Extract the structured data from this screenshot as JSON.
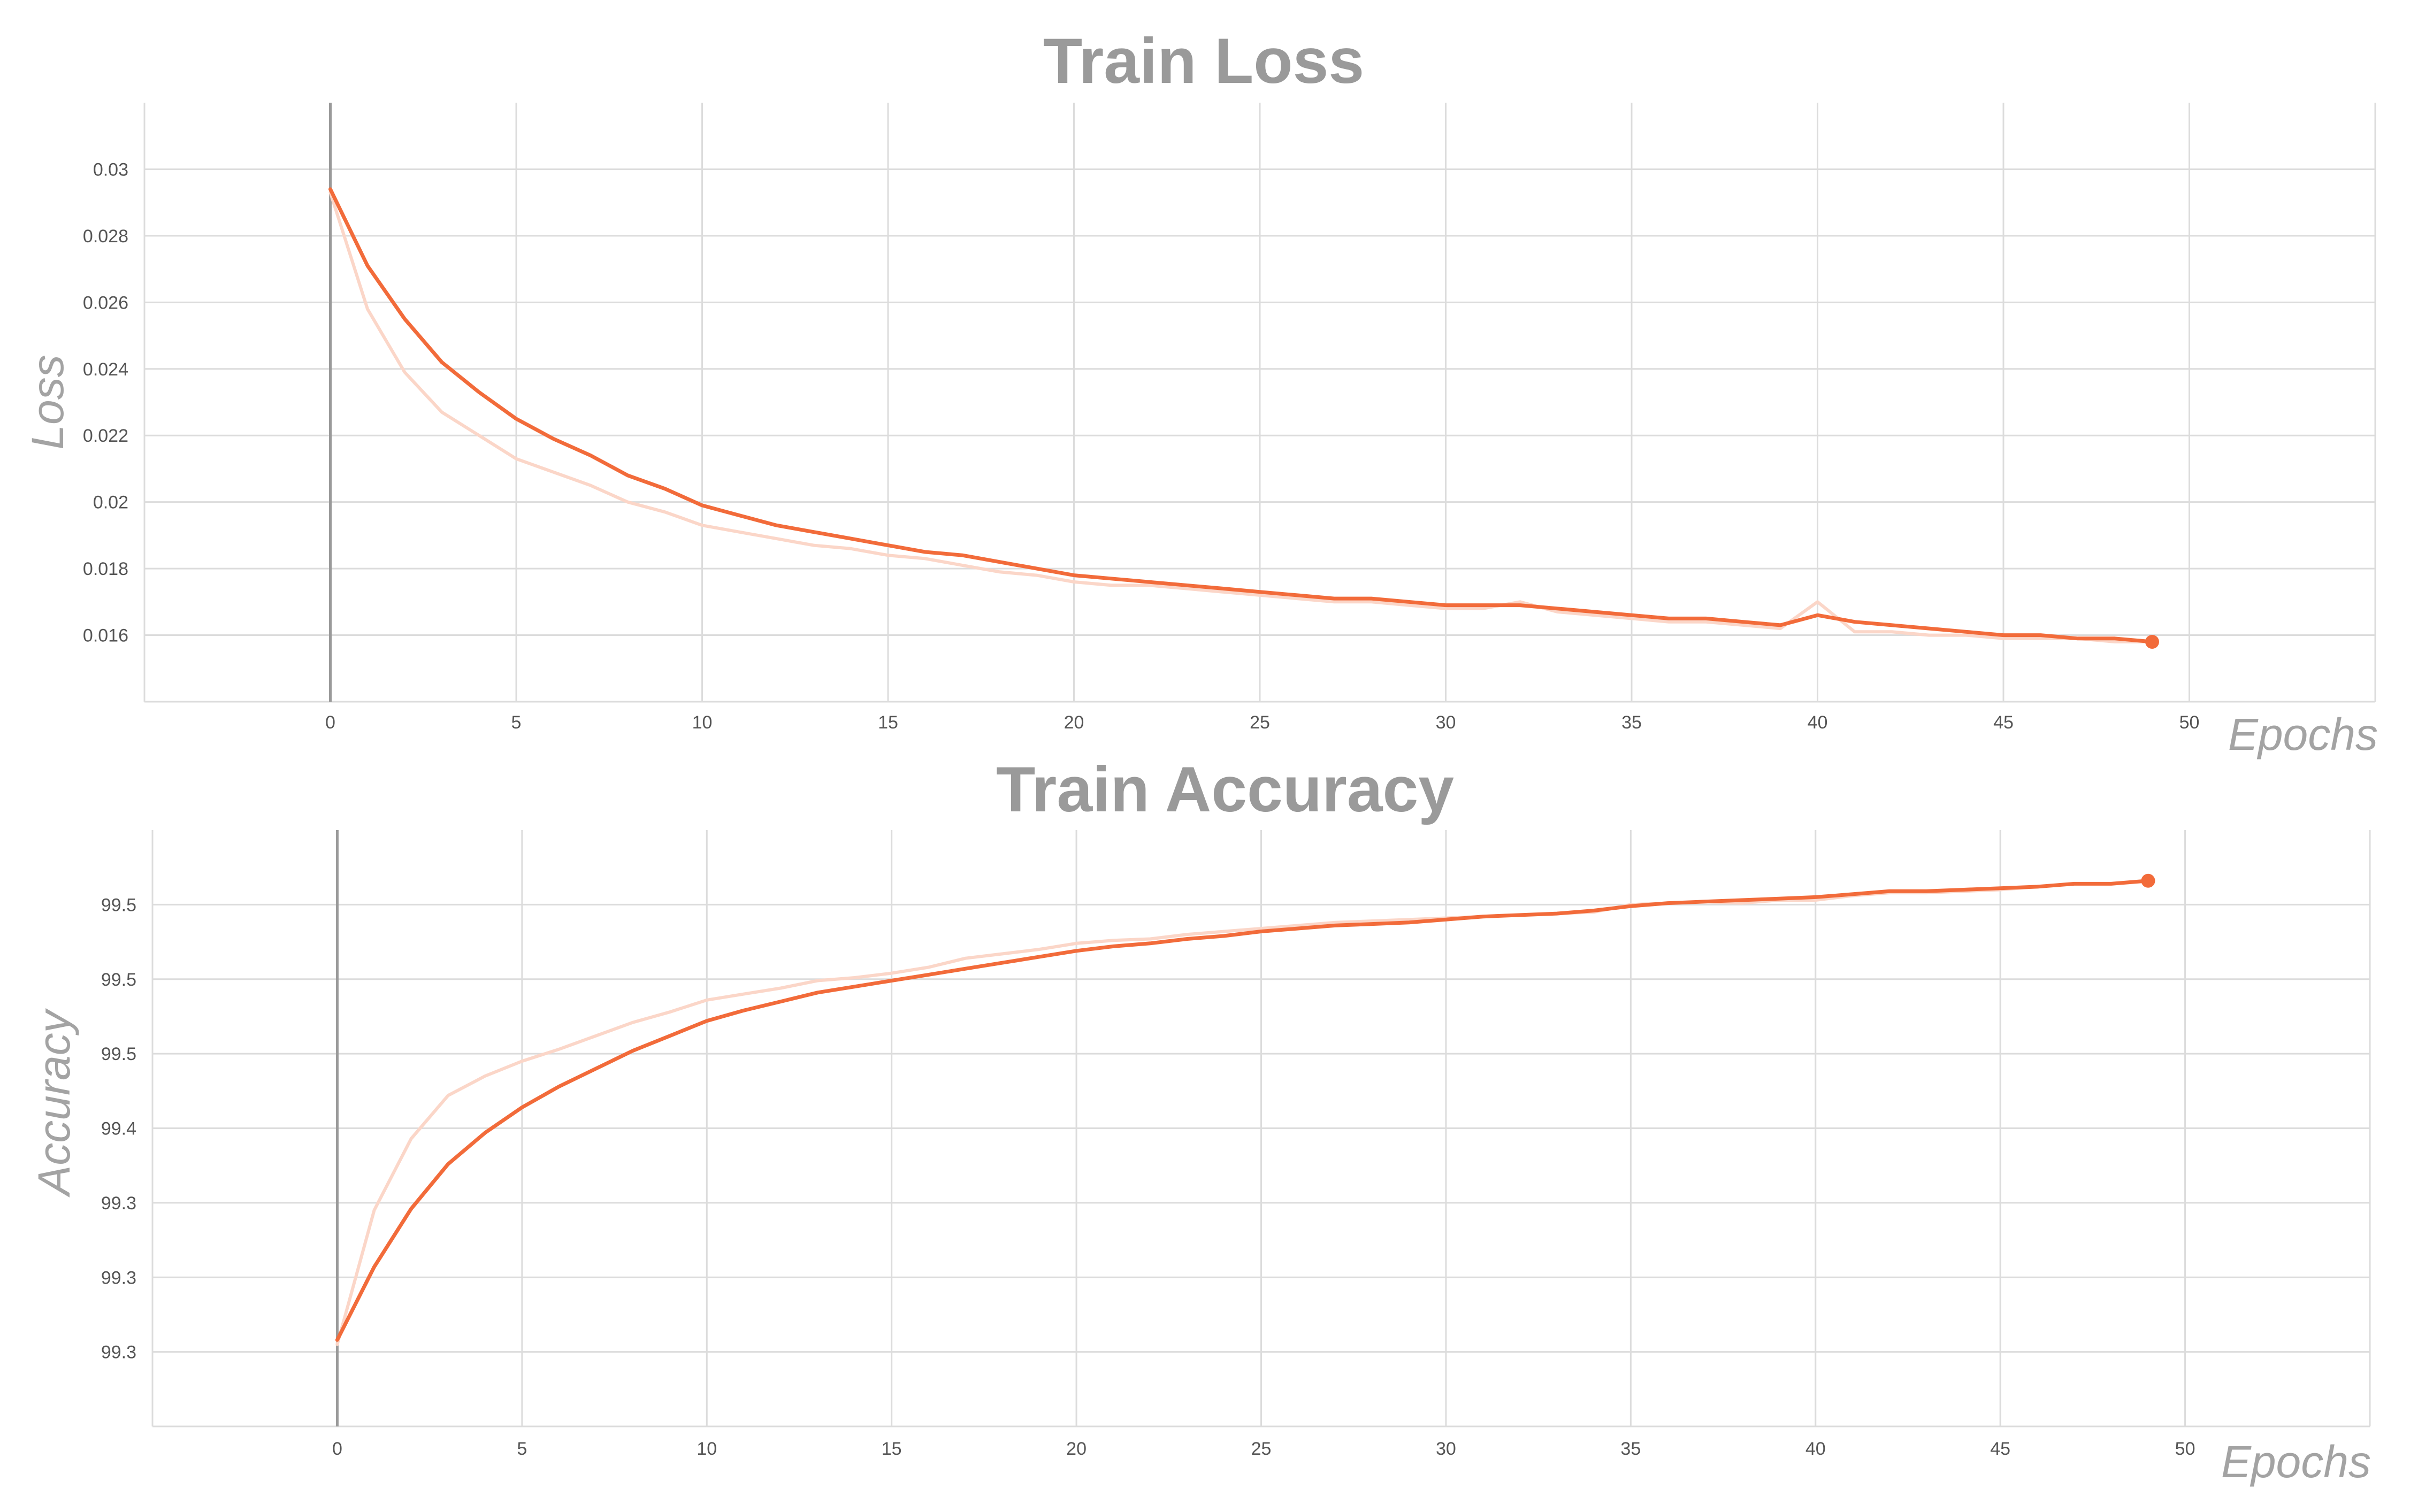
{
  "colors": {
    "smoothed": "#f26b3a",
    "raw": "#fbd6c8",
    "grid": "#dcdcdc",
    "title": "#9a9a9a"
  },
  "chart_data": [
    {
      "type": "line",
      "title": "Train Loss",
      "xlabel": "Epochs",
      "ylabel": "Loss",
      "xlim": [
        -5,
        55
      ],
      "ylim": [
        0.014,
        0.032
      ],
      "x_ticks": [
        0,
        5,
        10,
        15,
        20,
        25,
        30,
        35,
        40,
        45,
        50
      ],
      "y_ticks": [
        0.016,
        0.018,
        0.02,
        0.022,
        0.024,
        0.026,
        0.028,
        0.03
      ],
      "y_tick_labels": [
        "0.016",
        "0.018",
        "0.02",
        "0.022",
        "0.024",
        "0.026",
        "0.028",
        "0.03"
      ],
      "grid": true,
      "series": [
        {
          "style": "raw",
          "x": [
            0,
            1,
            2,
            3,
            4,
            5,
            6,
            7,
            8,
            9,
            10,
            11,
            12,
            13,
            14,
            15,
            16,
            17,
            18,
            19,
            20,
            21,
            22,
            23,
            24,
            25,
            26,
            27,
            28,
            29,
            30,
            31,
            32,
            33,
            34,
            35,
            36,
            37,
            38,
            39,
            40,
            41,
            42,
            43,
            44,
            45,
            46,
            47,
            48,
            49
          ],
          "y": [
            0.0293,
            0.0258,
            0.0239,
            0.0227,
            0.022,
            0.0213,
            0.0209,
            0.0205,
            0.02,
            0.0197,
            0.0193,
            0.0191,
            0.0189,
            0.0187,
            0.0186,
            0.0184,
            0.0183,
            0.0181,
            0.0179,
            0.0178,
            0.0176,
            0.0175,
            0.0175,
            0.0174,
            0.0173,
            0.0172,
            0.0171,
            0.017,
            0.017,
            0.0169,
            0.0168,
            0.0168,
            0.017,
            0.0167,
            0.0166,
            0.0165,
            0.0164,
            0.0164,
            0.0163,
            0.0162,
            0.017,
            0.0161,
            0.0161,
            0.016,
            0.016,
            0.0159,
            0.0159,
            0.0159,
            0.0158,
            0.0158
          ]
        },
        {
          "style": "smoothed",
          "x": [
            0,
            1,
            2,
            3,
            4,
            5,
            6,
            7,
            8,
            9,
            10,
            11,
            12,
            13,
            14,
            15,
            16,
            17,
            18,
            19,
            20,
            21,
            22,
            23,
            24,
            25,
            26,
            27,
            28,
            29,
            30,
            31,
            32,
            33,
            34,
            35,
            36,
            37,
            38,
            39,
            40,
            41,
            42,
            43,
            44,
            45,
            46,
            47,
            48,
            49
          ],
          "y": [
            0.0294,
            0.0271,
            0.0255,
            0.0242,
            0.0233,
            0.0225,
            0.0219,
            0.0214,
            0.0208,
            0.0204,
            0.0199,
            0.0196,
            0.0193,
            0.0191,
            0.0189,
            0.0187,
            0.0185,
            0.0184,
            0.0182,
            0.018,
            0.0178,
            0.0177,
            0.0176,
            0.0175,
            0.0174,
            0.0173,
            0.0172,
            0.0171,
            0.0171,
            0.017,
            0.0169,
            0.0169,
            0.0169,
            0.0168,
            0.0167,
            0.0166,
            0.0165,
            0.0165,
            0.0164,
            0.0163,
            0.0166,
            0.0164,
            0.0163,
            0.0162,
            0.0161,
            0.016,
            0.016,
            0.0159,
            0.0159,
            0.0158
          ]
        }
      ]
    },
    {
      "type": "line",
      "title": "Train Accuracy",
      "xlabel": "Epochs",
      "ylabel": "Accuracy",
      "xlim": [
        -5,
        55
      ],
      "ylim": [
        99.2,
        99.6
      ],
      "x_ticks": [
        0,
        5,
        10,
        15,
        20,
        25,
        30,
        35,
        40,
        45,
        50
      ],
      "y_ticks": [
        99.25,
        99.3,
        99.35,
        99.4,
        99.45,
        99.5,
        99.55
      ],
      "y_tick_labels": [
        "99.3",
        "99.3",
        "99.3",
        "99.4",
        "99.5",
        "99.5",
        "99.5"
      ],
      "grid": true,
      "series": [
        {
          "style": "raw",
          "x": [
            0,
            1,
            2,
            3,
            4,
            5,
            6,
            7,
            8,
            9,
            10,
            11,
            12,
            13,
            14,
            15,
            16,
            17,
            18,
            19,
            20,
            21,
            22,
            23,
            24,
            25,
            26,
            27,
            28,
            29,
            30,
            31,
            32,
            33,
            34,
            35,
            36,
            37,
            38,
            39,
            40,
            41,
            42,
            43,
            44,
            45,
            46,
            47,
            48,
            49
          ],
          "y": [
            99.255,
            99.345,
            99.393,
            99.422,
            99.435,
            99.445,
            99.453,
            99.462,
            99.471,
            99.478,
            99.486,
            99.49,
            99.494,
            99.499,
            99.501,
            99.504,
            99.508,
            99.514,
            99.517,
            99.52,
            99.524,
            99.526,
            99.527,
            99.53,
            99.532,
            99.534,
            99.536,
            99.538,
            99.539,
            99.54,
            99.541,
            99.542,
            99.543,
            99.544,
            99.545,
            99.55,
            99.551,
            99.552,
            99.551,
            99.553,
            99.553,
            99.556,
            99.558,
            99.558,
            99.559,
            99.56,
            99.562,
            99.564,
            99.564,
            99.566
          ]
        },
        {
          "style": "smoothed",
          "x": [
            0,
            1,
            2,
            3,
            4,
            5,
            6,
            7,
            8,
            9,
            10,
            11,
            12,
            13,
            14,
            15,
            16,
            17,
            18,
            19,
            20,
            21,
            22,
            23,
            24,
            25,
            26,
            27,
            28,
            29,
            30,
            31,
            32,
            33,
            34,
            35,
            36,
            37,
            38,
            39,
            40,
            41,
            42,
            43,
            44,
            45,
            46,
            47,
            48,
            49
          ],
          "y": [
            99.258,
            99.307,
            99.346,
            99.376,
            99.397,
            99.414,
            99.428,
            99.44,
            99.452,
            99.462,
            99.472,
            99.479,
            99.485,
            99.491,
            99.495,
            99.499,
            99.503,
            99.507,
            99.511,
            99.515,
            99.519,
            99.522,
            99.524,
            99.527,
            99.529,
            99.532,
            99.534,
            99.536,
            99.537,
            99.538,
            99.54,
            99.542,
            99.543,
            99.544,
            99.546,
            99.549,
            99.551,
            99.552,
            99.553,
            99.554,
            99.555,
            99.557,
            99.559,
            99.559,
            99.56,
            99.561,
            99.562,
            99.564,
            99.564,
            99.566
          ]
        }
      ]
    }
  ]
}
